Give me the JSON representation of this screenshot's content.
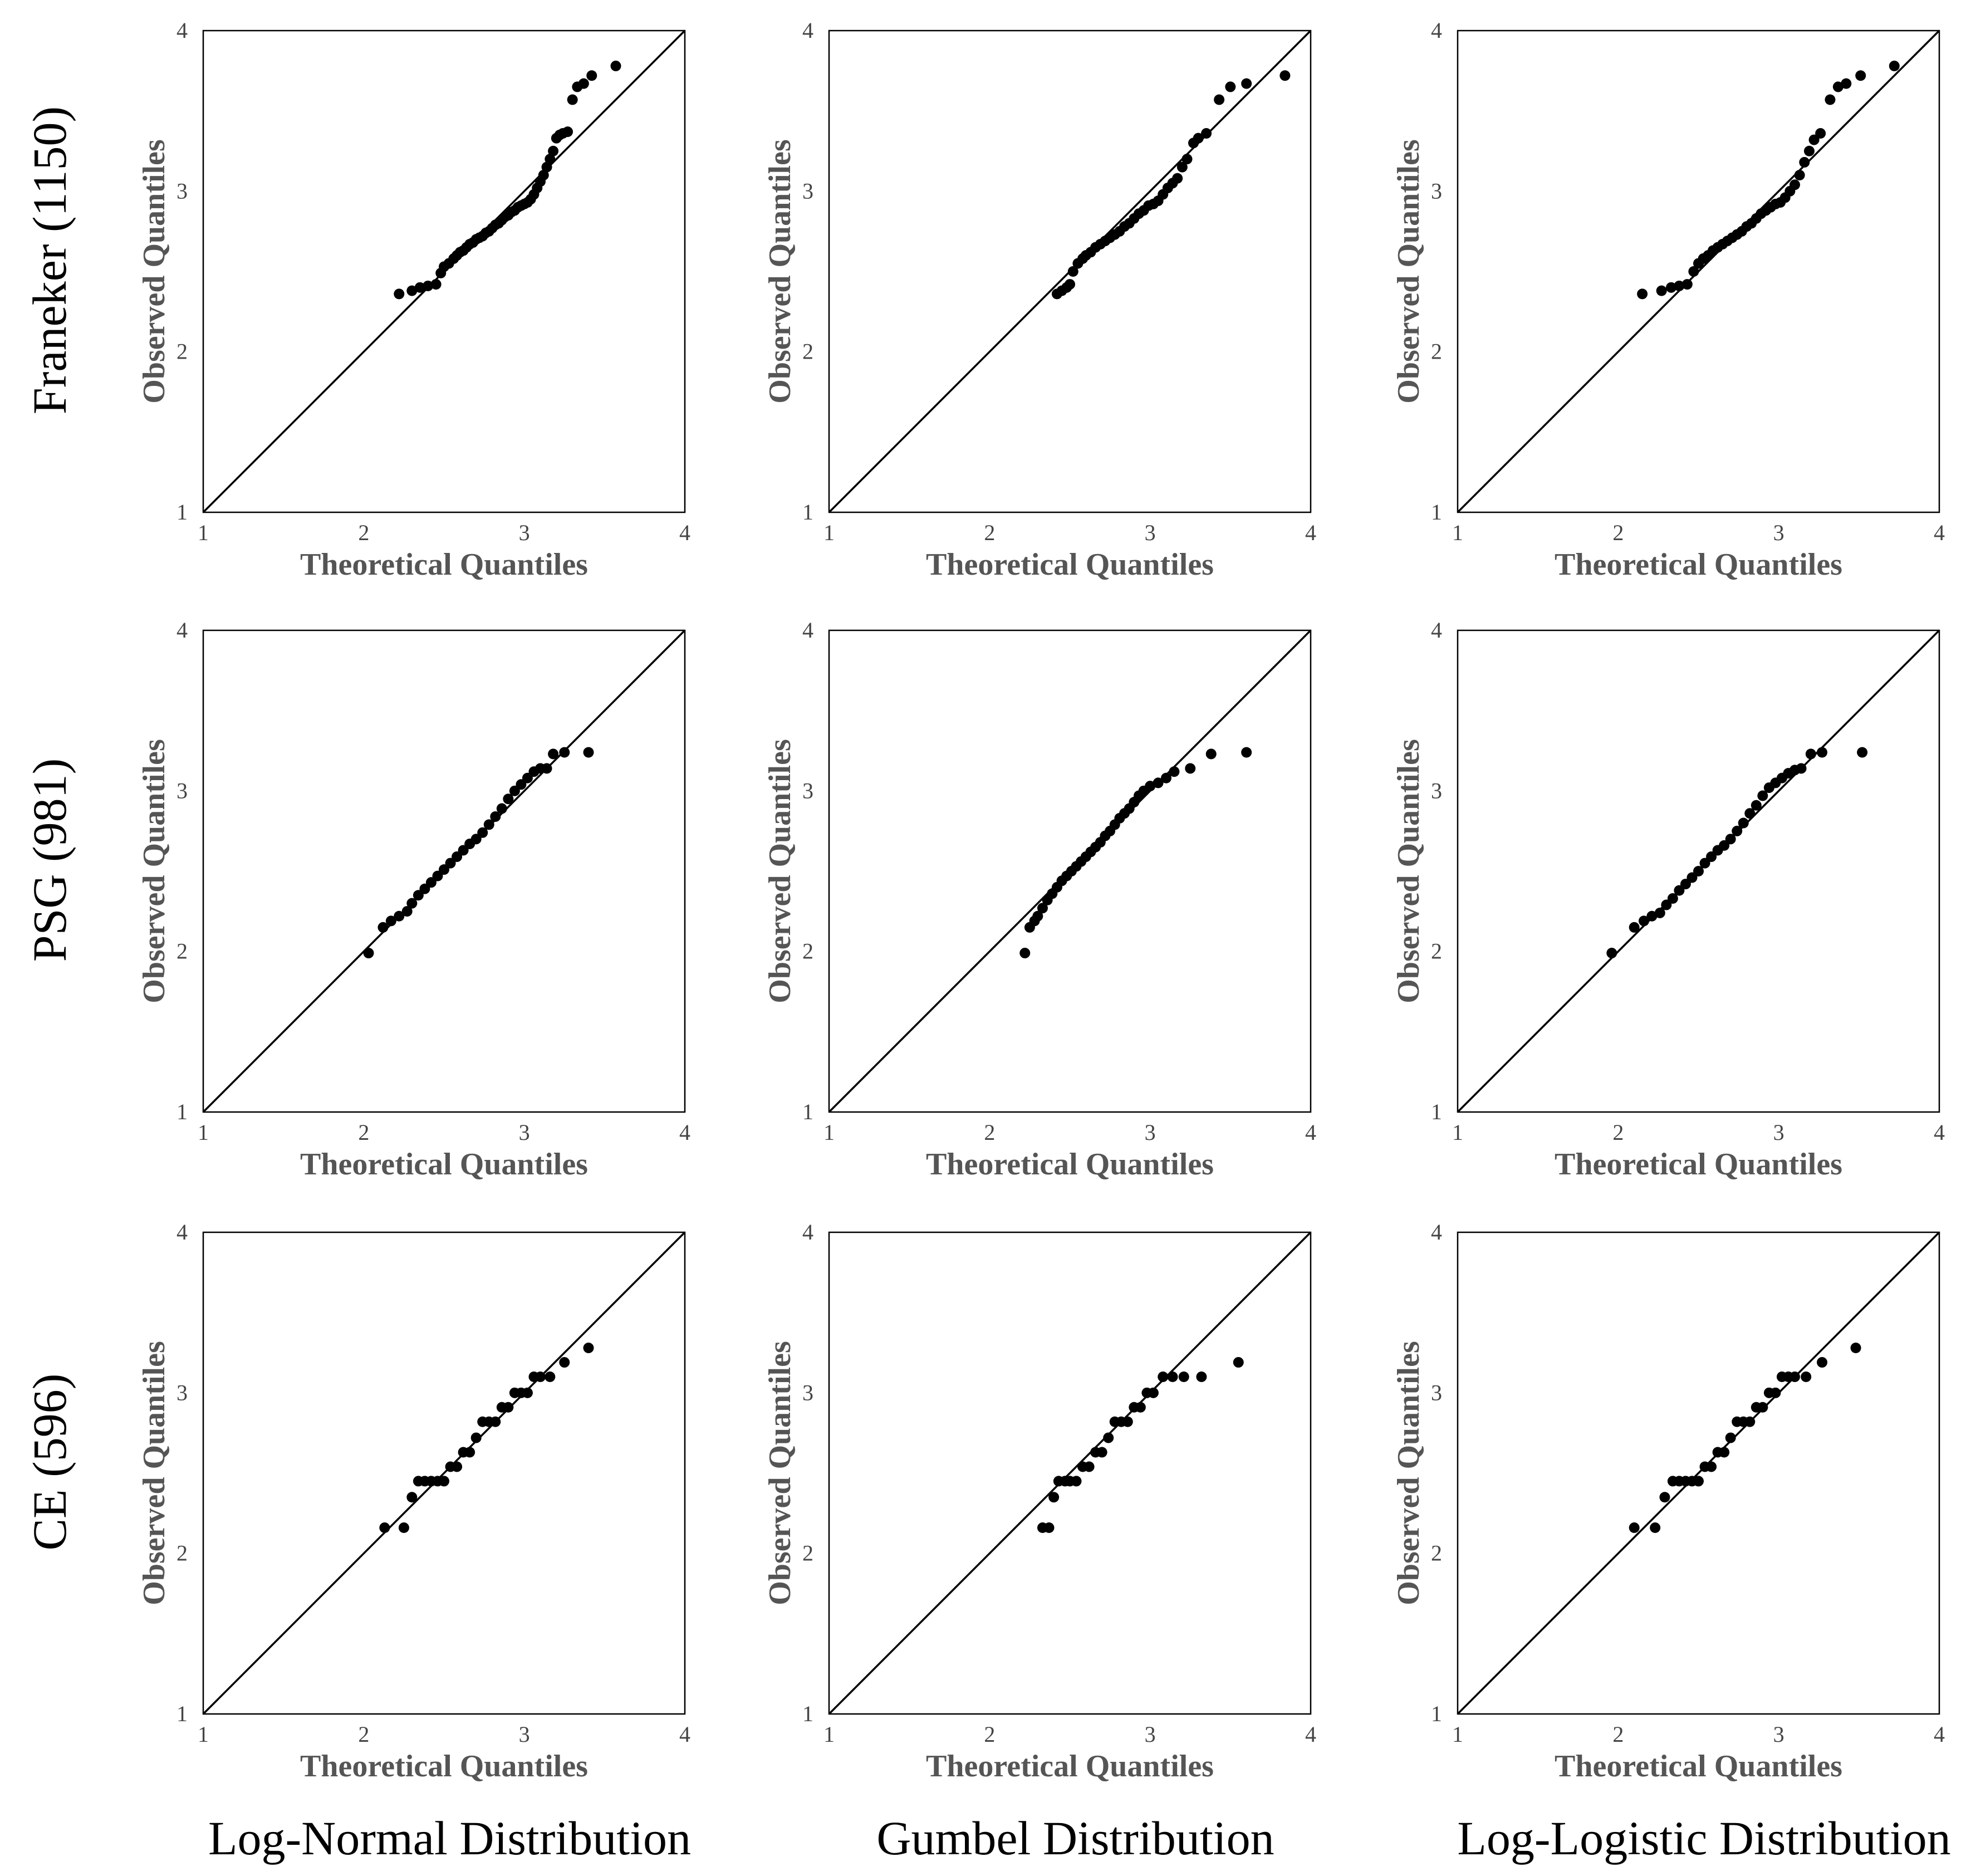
{
  "figure": {
    "row_labels": [
      "Franeker (1150)",
      "PSG (981)",
      "CE (596)"
    ],
    "column_labels": [
      "Log-Normal Distribution",
      "Gumbel Distribution",
      "Log-Logistic Distribution"
    ],
    "axis_text": {
      "xlabel": "Theoretical Quantiles",
      "ylabel": "Observed Quantiles",
      "ticks": [
        "1",
        "2",
        "3",
        "4"
      ]
    },
    "colors": {
      "ink": "#000000",
      "axis_label": "#555555",
      "tick": "#444444"
    }
  },
  "chart_data": [
    {
      "type": "scatter",
      "id": "franeker-lognormal",
      "row_label": "Franeker (1150)",
      "column_label": "Log-Normal Distribution",
      "xlabel": "Theoretical Quantiles",
      "ylabel": "Observed Quantiles",
      "xlim": [
        1,
        4
      ],
      "ylim": [
        1,
        4
      ],
      "reference_line": "y = x",
      "x": [
        2.22,
        2.3,
        2.35,
        2.4,
        2.45,
        2.48,
        2.5,
        2.53,
        2.56,
        2.58,
        2.6,
        2.62,
        2.64,
        2.66,
        2.68,
        2.7,
        2.72,
        2.74,
        2.76,
        2.78,
        2.8,
        2.82,
        2.84,
        2.86,
        2.88,
        2.9,
        2.92,
        2.94,
        2.96,
        2.98,
        3.0,
        3.02,
        3.04,
        3.06,
        3.08,
        3.1,
        3.12,
        3.14,
        3.16,
        3.18,
        3.2,
        3.22,
        3.24,
        3.27,
        3.3,
        3.33,
        3.37,
        3.42,
        3.57
      ],
      "y": [
        2.36,
        2.38,
        2.4,
        2.41,
        2.42,
        2.49,
        2.53,
        2.55,
        2.58,
        2.6,
        2.62,
        2.63,
        2.65,
        2.67,
        2.68,
        2.7,
        2.71,
        2.72,
        2.74,
        2.75,
        2.77,
        2.79,
        2.8,
        2.82,
        2.84,
        2.85,
        2.87,
        2.88,
        2.9,
        2.91,
        2.92,
        2.93,
        2.95,
        2.98,
        3.02,
        3.06,
        3.1,
        3.15,
        3.2,
        3.25,
        3.33,
        3.35,
        3.36,
        3.37,
        3.57,
        3.65,
        3.67,
        3.72,
        3.78
      ]
    },
    {
      "type": "scatter",
      "id": "franeker-gumbel",
      "row_label": "Franeker (1150)",
      "column_label": "Gumbel Distribution",
      "xlabel": "Theoretical Quantiles",
      "ylabel": "Observed Quantiles",
      "xlim": [
        1,
        4
      ],
      "ylim": [
        1,
        4
      ],
      "reference_line": "y = x",
      "x": [
        2.42,
        2.45,
        2.48,
        2.5,
        2.52,
        2.55,
        2.58,
        2.6,
        2.63,
        2.66,
        2.69,
        2.72,
        2.75,
        2.78,
        2.81,
        2.84,
        2.87,
        2.9,
        2.93,
        2.96,
        2.99,
        3.02,
        3.05,
        3.08,
        3.11,
        3.14,
        3.17,
        3.2,
        3.23,
        3.27,
        3.3,
        3.35,
        3.43,
        3.5,
        3.6,
        3.84
      ],
      "y": [
        2.36,
        2.38,
        2.4,
        2.42,
        2.5,
        2.55,
        2.58,
        2.6,
        2.62,
        2.65,
        2.67,
        2.69,
        2.71,
        2.73,
        2.75,
        2.78,
        2.8,
        2.83,
        2.86,
        2.88,
        2.91,
        2.92,
        2.94,
        2.98,
        3.02,
        3.05,
        3.08,
        3.15,
        3.2,
        3.3,
        3.33,
        3.36,
        3.57,
        3.65,
        3.67,
        3.72
      ]
    },
    {
      "type": "scatter",
      "id": "franeker-loglogistic",
      "row_label": "Franeker (1150)",
      "column_label": "Log-Logistic Distribution",
      "xlabel": "Theoretical Quantiles",
      "ylabel": "Observed Quantiles",
      "xlim": [
        1,
        4
      ],
      "ylim": [
        1,
        4
      ],
      "reference_line": "y = x",
      "x": [
        2.15,
        2.27,
        2.33,
        2.38,
        2.43,
        2.47,
        2.5,
        2.53,
        2.56,
        2.59,
        2.62,
        2.65,
        2.68,
        2.71,
        2.74,
        2.77,
        2.8,
        2.83,
        2.86,
        2.89,
        2.92,
        2.95,
        2.98,
        3.01,
        3.04,
        3.07,
        3.1,
        3.13,
        3.16,
        3.19,
        3.22,
        3.26,
        3.32,
        3.37,
        3.42,
        3.51,
        3.72
      ],
      "y": [
        2.36,
        2.38,
        2.4,
        2.41,
        2.42,
        2.5,
        2.55,
        2.58,
        2.6,
        2.63,
        2.65,
        2.67,
        2.69,
        2.71,
        2.73,
        2.75,
        2.78,
        2.8,
        2.83,
        2.86,
        2.88,
        2.9,
        2.92,
        2.93,
        2.96,
        3.0,
        3.04,
        3.1,
        3.18,
        3.25,
        3.32,
        3.36,
        3.57,
        3.65,
        3.67,
        3.72,
        3.78
      ]
    },
    {
      "type": "scatter",
      "id": "psg-lognormal",
      "row_label": "PSG (981)",
      "column_label": "Log-Normal Distribution",
      "xlabel": "Theoretical Quantiles",
      "ylabel": "Observed Quantiles",
      "xlim": [
        1,
        4
      ],
      "ylim": [
        1,
        4
      ],
      "reference_line": "y = x",
      "x": [
        2.03,
        2.12,
        2.17,
        2.22,
        2.27,
        2.3,
        2.34,
        2.38,
        2.42,
        2.46,
        2.5,
        2.54,
        2.58,
        2.62,
        2.66,
        2.7,
        2.74,
        2.78,
        2.82,
        2.86,
        2.9,
        2.94,
        2.98,
        3.02,
        3.06,
        3.1,
        3.14,
        3.18,
        3.25,
        3.4
      ],
      "y": [
        1.99,
        2.15,
        2.19,
        2.22,
        2.25,
        2.3,
        2.35,
        2.39,
        2.43,
        2.47,
        2.51,
        2.55,
        2.59,
        2.63,
        2.67,
        2.7,
        2.74,
        2.79,
        2.84,
        2.89,
        2.95,
        3.0,
        3.04,
        3.08,
        3.12,
        3.14,
        3.14,
        3.23,
        3.24,
        3.24
      ]
    },
    {
      "type": "scatter",
      "id": "psg-gumbel",
      "row_label": "PSG (981)",
      "column_label": "Gumbel Distribution",
      "xlabel": "Theoretical Quantiles",
      "ylabel": "Observed Quantiles",
      "xlim": [
        1,
        4
      ],
      "ylim": [
        1,
        4
      ],
      "reference_line": "y = x",
      "x": [
        2.22,
        2.25,
        2.28,
        2.3,
        2.33,
        2.36,
        2.39,
        2.42,
        2.45,
        2.48,
        2.51,
        2.54,
        2.57,
        2.6,
        2.63,
        2.66,
        2.69,
        2.72,
        2.75,
        2.78,
        2.81,
        2.84,
        2.87,
        2.9,
        2.93,
        2.96,
        3.0,
        3.05,
        3.1,
        3.15,
        3.25,
        3.38,
        3.6
      ],
      "y": [
        1.99,
        2.15,
        2.19,
        2.22,
        2.27,
        2.32,
        2.36,
        2.4,
        2.44,
        2.47,
        2.5,
        2.53,
        2.56,
        2.59,
        2.62,
        2.65,
        2.68,
        2.72,
        2.75,
        2.79,
        2.83,
        2.86,
        2.89,
        2.93,
        2.97,
        3.0,
        3.03,
        3.05,
        3.08,
        3.12,
        3.14,
        3.23,
        3.24
      ]
    },
    {
      "type": "scatter",
      "id": "psg-loglogistic",
      "row_label": "PSG (981)",
      "column_label": "Log-Logistic Distribution",
      "xlabel": "Theoretical Quantiles",
      "ylabel": "Observed Quantiles",
      "xlim": [
        1,
        4
      ],
      "ylim": [
        1,
        4
      ],
      "reference_line": "y = x",
      "x": [
        1.96,
        2.1,
        2.16,
        2.21,
        2.26,
        2.3,
        2.34,
        2.38,
        2.42,
        2.46,
        2.5,
        2.54,
        2.58,
        2.62,
        2.66,
        2.7,
        2.74,
        2.78,
        2.82,
        2.86,
        2.9,
        2.94,
        2.98,
        3.02,
        3.06,
        3.1,
        3.14,
        3.2,
        3.27,
        3.52
      ],
      "y": [
        1.99,
        2.15,
        2.19,
        2.22,
        2.24,
        2.29,
        2.33,
        2.38,
        2.42,
        2.46,
        2.5,
        2.55,
        2.59,
        2.63,
        2.66,
        2.7,
        2.75,
        2.8,
        2.86,
        2.91,
        2.97,
        3.02,
        3.05,
        3.08,
        3.11,
        3.13,
        3.14,
        3.23,
        3.24,
        3.24
      ]
    },
    {
      "type": "scatter",
      "id": "ce-lognormal",
      "row_label": "CE (596)",
      "column_label": "Log-Normal Distribution",
      "xlabel": "Theoretical Quantiles",
      "ylabel": "Observed Quantiles",
      "xlim": [
        1,
        4
      ],
      "ylim": [
        1,
        4
      ],
      "reference_line": "y = x",
      "x": [
        2.13,
        2.25,
        2.3,
        2.34,
        2.38,
        2.42,
        2.46,
        2.5,
        2.54,
        2.58,
        2.62,
        2.66,
        2.7,
        2.74,
        2.78,
        2.82,
        2.86,
        2.9,
        2.94,
        2.98,
        3.02,
        3.06,
        3.1,
        3.16,
        3.25,
        3.4
      ],
      "y": [
        2.16,
        2.16,
        2.35,
        2.45,
        2.45,
        2.45,
        2.45,
        2.45,
        2.54,
        2.54,
        2.63,
        2.63,
        2.72,
        2.82,
        2.82,
        2.82,
        2.91,
        2.91,
        3.0,
        3.0,
        3.0,
        3.1,
        3.1,
        3.1,
        3.19,
        3.28
      ]
    },
    {
      "type": "scatter",
      "id": "ce-gumbel",
      "row_label": "CE (596)",
      "column_label": "Gumbel Distribution",
      "xlabel": "Theoretical Quantiles",
      "ylabel": "Observed Quantiles",
      "xlim": [
        1,
        4
      ],
      "ylim": [
        1,
        4
      ],
      "reference_line": "y = x",
      "x": [
        2.33,
        2.37,
        2.4,
        2.43,
        2.47,
        2.5,
        2.54,
        2.58,
        2.62,
        2.66,
        2.7,
        2.74,
        2.78,
        2.82,
        2.86,
        2.9,
        2.94,
        2.98,
        3.02,
        3.08,
        3.14,
        3.21,
        3.32,
        3.55
      ],
      "y": [
        2.16,
        2.16,
        2.35,
        2.45,
        2.45,
        2.45,
        2.45,
        2.54,
        2.54,
        2.63,
        2.63,
        2.72,
        2.82,
        2.82,
        2.82,
        2.91,
        2.91,
        3.0,
        3.0,
        3.1,
        3.1,
        3.1,
        3.1,
        3.19
      ]
    },
    {
      "type": "scatter",
      "id": "ce-loglogistic",
      "row_label": "CE (596)",
      "column_label": "Log-Logistic Distribution",
      "xlabel": "Theoretical Quantiles",
      "ylabel": "Observed Quantiles",
      "xlim": [
        1,
        4
      ],
      "ylim": [
        1,
        4
      ],
      "reference_line": "y = x",
      "x": [
        2.1,
        2.23,
        2.29,
        2.34,
        2.38,
        2.42,
        2.46,
        2.5,
        2.54,
        2.58,
        2.62,
        2.66,
        2.7,
        2.74,
        2.78,
        2.82,
        2.86,
        2.9,
        2.94,
        2.98,
        3.02,
        3.06,
        3.1,
        3.17,
        3.27,
        3.48
      ],
      "y": [
        2.16,
        2.16,
        2.35,
        2.45,
        2.45,
        2.45,
        2.45,
        2.45,
        2.54,
        2.54,
        2.63,
        2.63,
        2.72,
        2.82,
        2.82,
        2.82,
        2.91,
        2.91,
        3.0,
        3.0,
        3.1,
        3.1,
        3.1,
        3.1,
        3.19,
        3.28
      ]
    }
  ]
}
